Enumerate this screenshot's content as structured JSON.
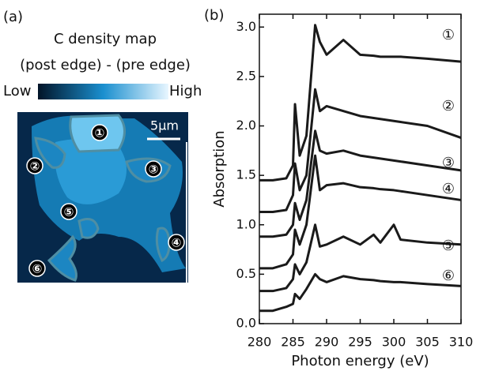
{
  "panel_a": {
    "label": "(a)",
    "title_lines": [
      "C density map",
      "(post edge) - (pre edge)"
    ],
    "colorbar": {
      "low": "Low",
      "high": "High"
    },
    "scale_bar": "5μm",
    "regions": [
      "①",
      "②",
      "③",
      "④",
      "⑤",
      "⑥"
    ]
  },
  "chart_data": {
    "type": "line",
    "panel_label": "(b)",
    "x_label": "Photon energy (eV)",
    "y_label": "Absorption",
    "x": [
      280,
      282,
      284,
      285,
      285.3,
      286,
      287,
      288.3,
      289,
      290,
      292.5,
      295,
      297,
      298,
      300,
      301,
      305,
      310
    ],
    "series": [
      {
        "name": "①",
        "color": "#1a1a1a",
        "values": [
          1.45,
          1.45,
          1.47,
          1.6,
          2.22,
          1.7,
          1.9,
          3.02,
          2.85,
          2.72,
          2.87,
          2.72,
          2.71,
          2.7,
          2.7,
          2.7,
          2.68,
          2.65
        ]
      },
      {
        "name": "②",
        "color": "#1a1a1a",
        "values": [
          1.13,
          1.13,
          1.15,
          1.3,
          1.62,
          1.35,
          1.5,
          2.37,
          2.15,
          2.2,
          2.15,
          2.1,
          2.08,
          2.07,
          2.05,
          2.04,
          2.0,
          1.88
        ]
      },
      {
        "name": "③",
        "color": "#1a1a1a",
        "values": [
          0.88,
          0.88,
          0.9,
          1.0,
          1.22,
          1.05,
          1.25,
          1.95,
          1.75,
          1.72,
          1.75,
          1.7,
          1.68,
          1.67,
          1.65,
          1.64,
          1.6,
          1.55
        ]
      },
      {
        "name": "④",
        "color": "#1a1a1a",
        "values": [
          0.56,
          0.56,
          0.6,
          0.7,
          0.95,
          0.8,
          1.0,
          1.7,
          1.35,
          1.4,
          1.42,
          1.38,
          1.37,
          1.36,
          1.35,
          1.34,
          1.3,
          1.25
        ]
      },
      {
        "name": "⑤",
        "color": "#1a1a1a",
        "values": [
          0.33,
          0.33,
          0.36,
          0.45,
          0.6,
          0.5,
          0.62,
          1.0,
          0.78,
          0.8,
          0.88,
          0.8,
          0.9,
          0.82,
          1.0,
          0.85,
          0.82,
          0.8
        ]
      },
      {
        "name": "⑥",
        "color": "#1a1a1a",
        "values": [
          0.13,
          0.13,
          0.17,
          0.2,
          0.3,
          0.25,
          0.35,
          0.5,
          0.45,
          0.42,
          0.48,
          0.45,
          0.44,
          0.43,
          0.42,
          0.42,
          0.4,
          0.38
        ]
      }
    ],
    "xlim": [
      280,
      310
    ],
    "ylim": [
      0,
      3.13
    ],
    "xticks": [
      280,
      285,
      290,
      295,
      300,
      305,
      310
    ],
    "yticks": [
      {
        "value": 0,
        "label": "0.0"
      },
      0.5,
      {
        "value": 1,
        "label": "1.0"
      },
      1.5,
      {
        "value": 2,
        "label": "2.0"
      },
      2.5,
      {
        "value": 3,
        "label": "3.0"
      }
    ]
  }
}
